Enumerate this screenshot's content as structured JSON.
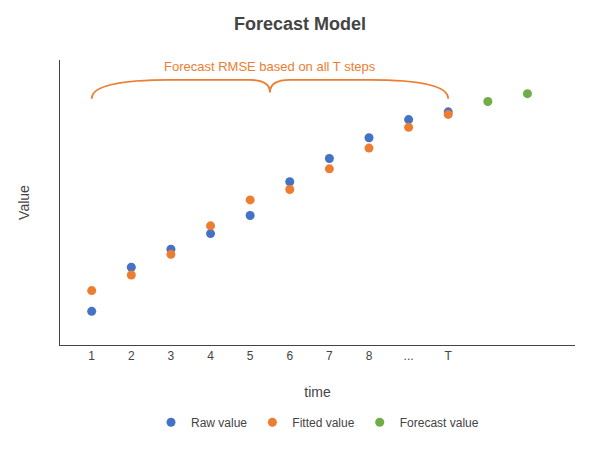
{
  "chart_data": {
    "type": "scatter",
    "title": "Forecast Model",
    "x_label": "time",
    "y_label": "Value",
    "series": [
      {
        "name": "Raw value",
        "color": "#4472C4",
        "marker": "circle",
        "x": [
          1,
          2,
          3,
          4,
          5,
          6,
          7,
          8,
          9,
          10
        ],
        "values": [
          0.13,
          0.3,
          0.37,
          0.43,
          0.5,
          0.63,
          0.72,
          0.8,
          0.87,
          0.9
        ]
      },
      {
        "name": "Fitted value",
        "color": "#ED7D31",
        "marker": "circle",
        "x": [
          1,
          2,
          3,
          4,
          5,
          6,
          7,
          8,
          9,
          10
        ],
        "values": [
          0.21,
          0.27,
          0.35,
          0.46,
          0.56,
          0.6,
          0.68,
          0.76,
          0.84,
          0.89
        ]
      },
      {
        "name": "Forecast value",
        "color": "#70AD47",
        "marker": "circle",
        "x": [
          11,
          12
        ],
        "values": [
          0.94,
          0.97
        ]
      }
    ],
    "xlim": [
      0.2,
      13.2
    ],
    "xticks": [
      1,
      2,
      3,
      4,
      5,
      6,
      7,
      8,
      {
        "value": 9,
        "label": "..."
      },
      {
        "value": 10,
        "label": "T"
      }
    ],
    "ylim": [
      0.0,
      1.1
    ],
    "yticks": [],
    "tick_labels": "x",
    "grid": false,
    "legend": "bottom",
    "annotations": [
      {
        "text": "Forecast RMSE based on all T steps",
        "color": "#ED7D31"
      }
    ]
  }
}
